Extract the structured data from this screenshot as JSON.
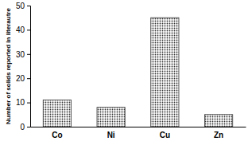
{
  "chart_data": {
    "type": "bar",
    "y_label": "Number of solids reported in literautre",
    "categories": [
      "Co",
      "Ni",
      "Cu",
      "Zn"
    ],
    "values": [
      11,
      8,
      45,
      5
    ],
    "color": "#333333",
    "ylim": [
      0,
      50
    ],
    "yticks": [
      0,
      10,
      20,
      30,
      40,
      50
    ],
    "grid": false
  }
}
